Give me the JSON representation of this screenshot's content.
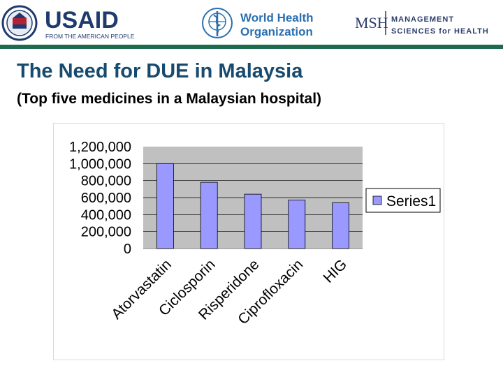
{
  "header": {
    "usaid": {
      "name": "USAID",
      "tagline": "FROM THE AMERICAN PEOPLE"
    },
    "who": {
      "line1": "World Health",
      "line2": "Organization"
    },
    "msh": {
      "abbr": "MSH",
      "line1": "MANAGEMENT",
      "line2": "SCIENCES for HEALTH"
    }
  },
  "slide": {
    "title": "The Need for DUE in Malaysia",
    "subtitle": "(Top five medicines in a Malaysian hospital)"
  },
  "colors": {
    "accent_green": "#1f6b4e",
    "title_blue": "#174a6e",
    "bar_fill": "#9999ff",
    "plot_bg": "#c0c0c0"
  },
  "chart_data": {
    "type": "bar",
    "title": "",
    "xlabel": "",
    "ylabel": "",
    "categories": [
      "Atorvastatin",
      "Ciclosporin",
      "Risperidone",
      "Ciprofloxacin",
      "HIG"
    ],
    "series": [
      {
        "name": "Series1",
        "values": [
          1000000,
          780000,
          640000,
          570000,
          540000
        ]
      }
    ],
    "ylim": [
      0,
      1200000
    ],
    "yticks": [
      "0",
      "200,000",
      "400,000",
      "600,000",
      "800,000",
      "1,000,000",
      "1,200,000"
    ],
    "grid": true,
    "legend": "right"
  }
}
